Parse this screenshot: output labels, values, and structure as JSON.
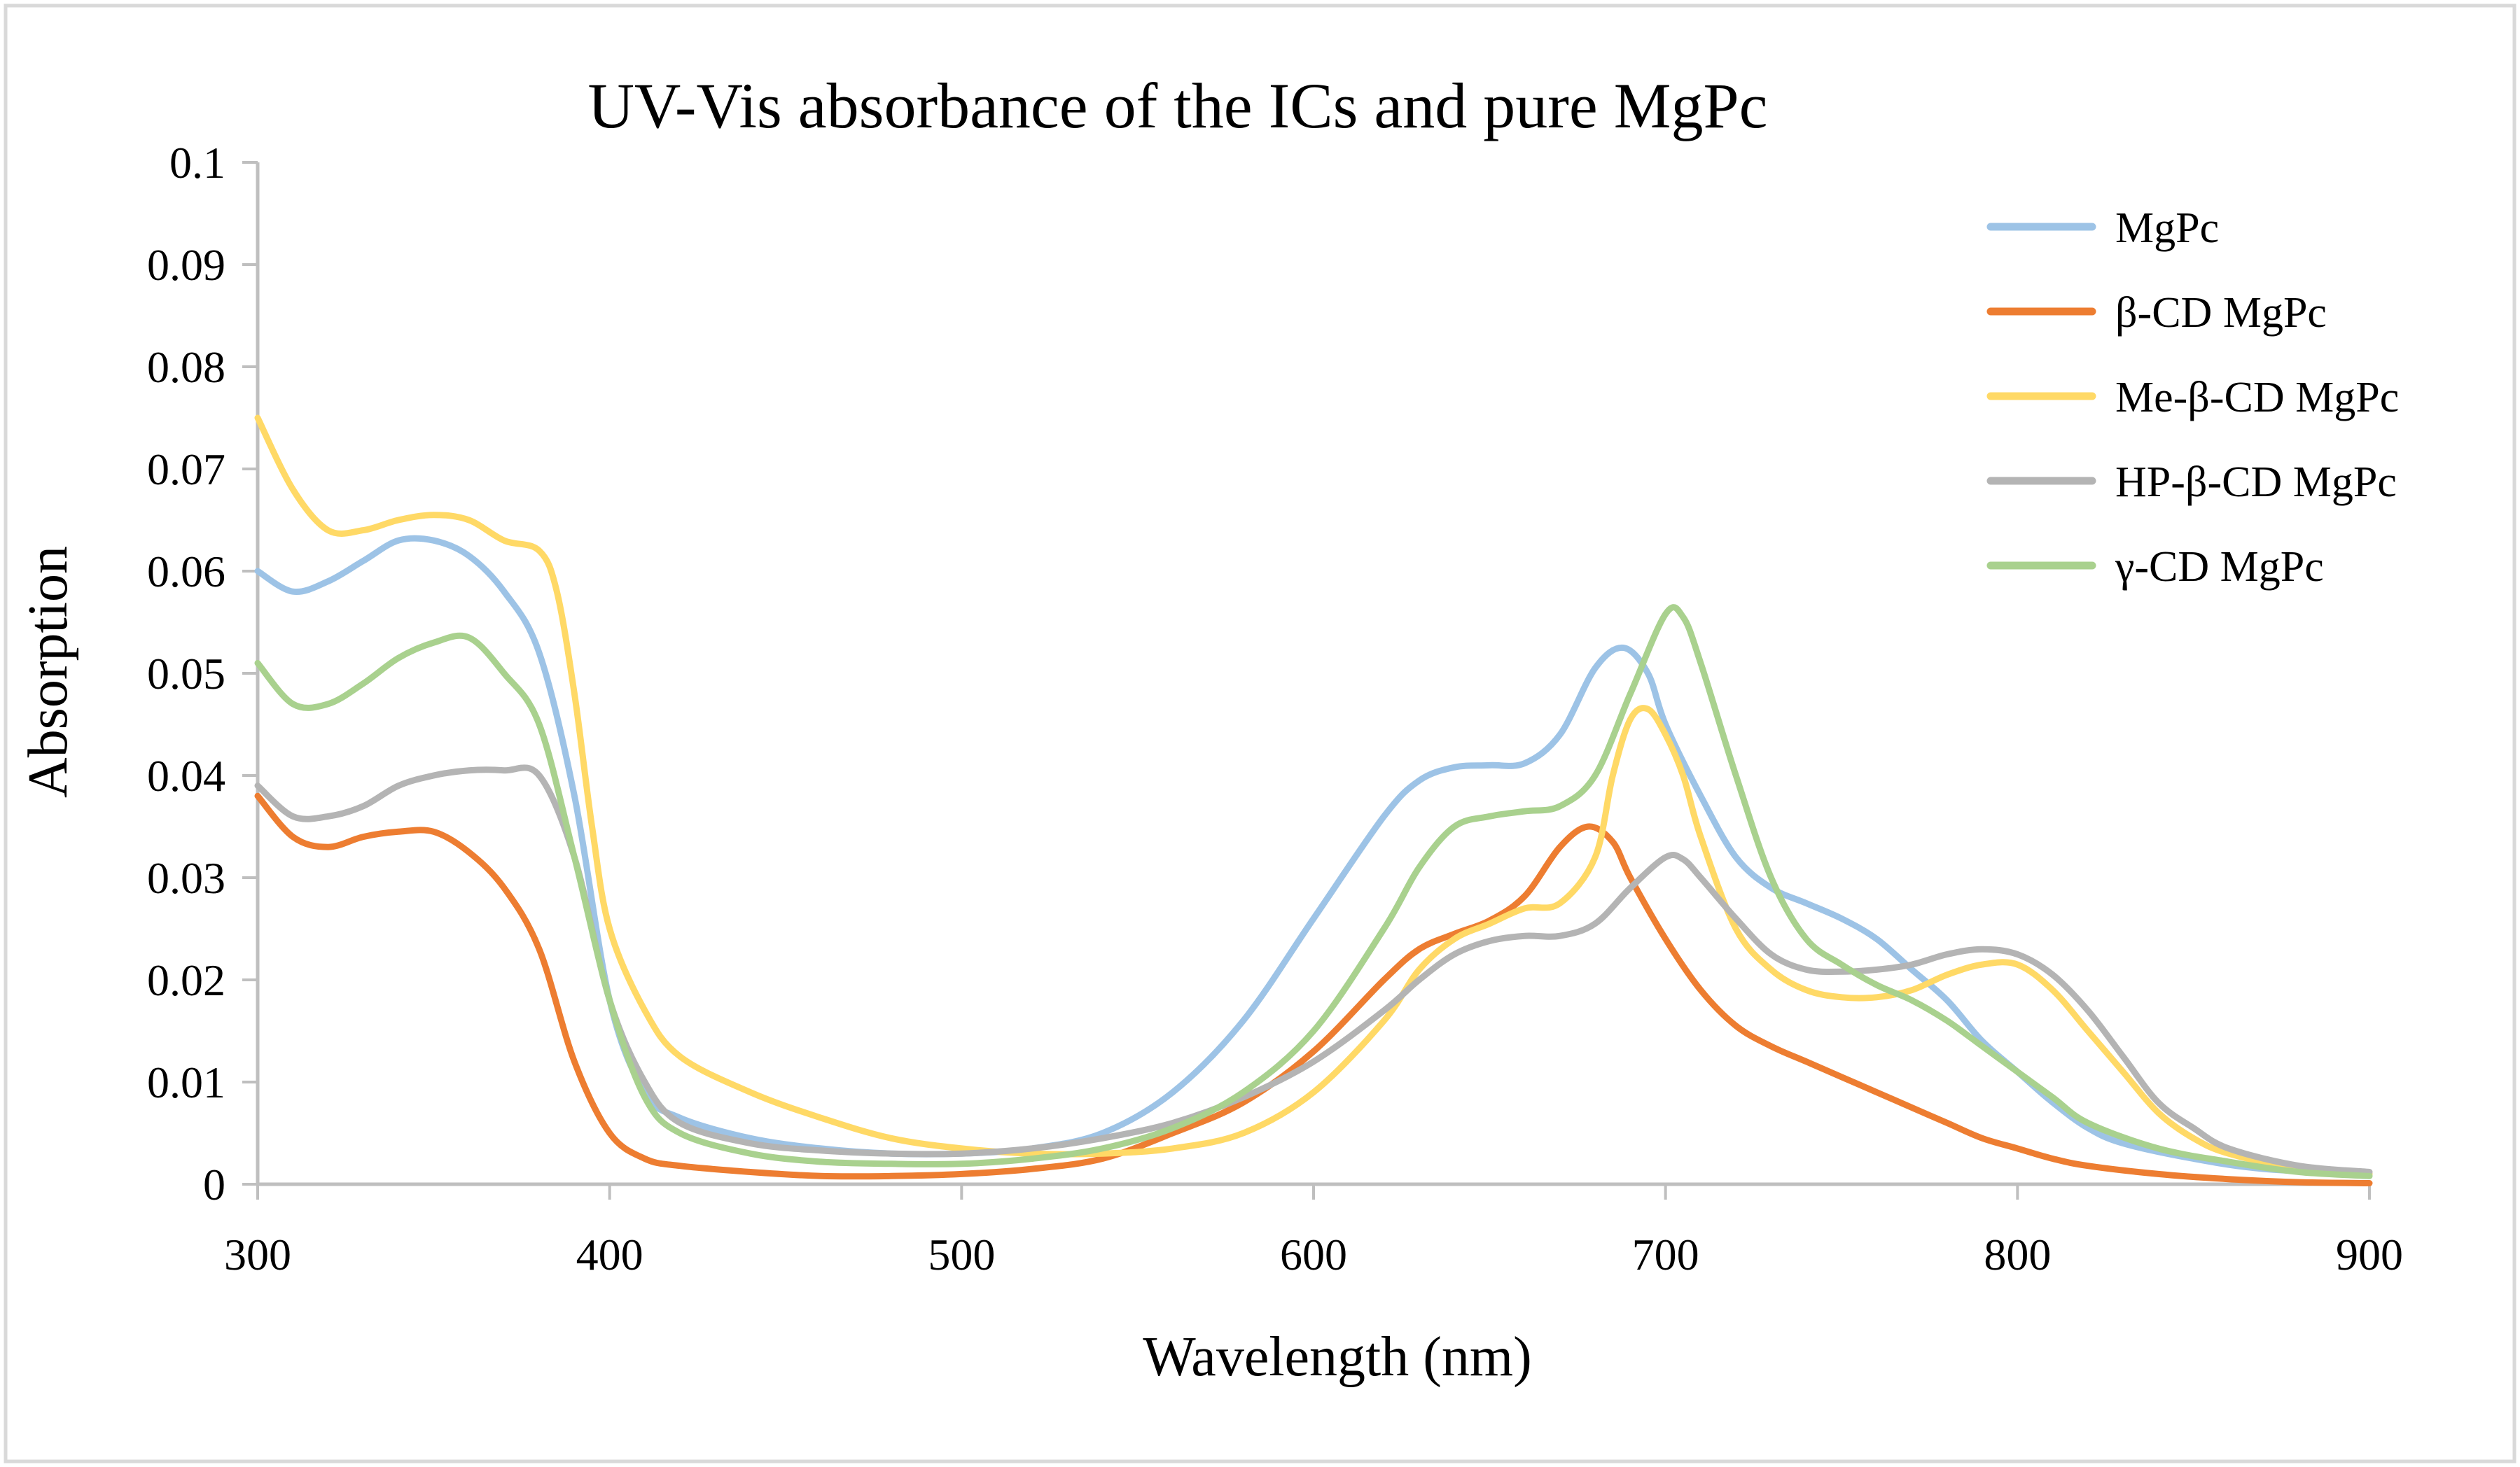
{
  "chart_data": {
    "type": "line",
    "title": "UV-Vis absorbance of the ICs and pure MgPc",
    "xlabel": "Wavelength (nm)",
    "ylabel": "Absorption",
    "xlim": [
      300,
      900
    ],
    "ylim": [
      0,
      0.1
    ],
    "x_ticks": [
      300,
      400,
      500,
      600,
      700,
      800,
      900
    ],
    "x_tick_labels": [
      "300",
      "400",
      "500",
      "600",
      "700",
      "800",
      "900"
    ],
    "y_ticks": [
      0,
      0.01,
      0.02,
      0.03,
      0.04,
      0.05,
      0.06,
      0.07,
      0.08,
      0.09,
      0.1
    ],
    "y_tick_labels": [
      "0",
      "0.01",
      "0.02",
      "0.03",
      "0.04",
      "0.05",
      "0.06",
      "0.07",
      "0.08",
      "0.09",
      "0.1"
    ],
    "grid": false,
    "legend_position": "top-right",
    "series": [
      {
        "name": "MgPc",
        "color": "#9dc3e6",
        "points": [
          [
            300,
            0.06
          ],
          [
            310,
            0.058
          ],
          [
            320,
            0.059
          ],
          [
            330,
            0.061
          ],
          [
            340,
            0.063
          ],
          [
            350,
            0.063
          ],
          [
            360,
            0.0615
          ],
          [
            370,
            0.058
          ],
          [
            380,
            0.052
          ],
          [
            390,
            0.038
          ],
          [
            400,
            0.018
          ],
          [
            410,
            0.009
          ],
          [
            420,
            0.0065
          ],
          [
            440,
            0.0045
          ],
          [
            460,
            0.0035
          ],
          [
            480,
            0.003
          ],
          [
            500,
            0.003
          ],
          [
            520,
            0.0035
          ],
          [
            540,
            0.005
          ],
          [
            560,
            0.009
          ],
          [
            580,
            0.016
          ],
          [
            600,
            0.026
          ],
          [
            620,
            0.036
          ],
          [
            630,
            0.0395
          ],
          [
            640,
            0.0408
          ],
          [
            650,
            0.041
          ],
          [
            660,
            0.0412
          ],
          [
            670,
            0.044
          ],
          [
            680,
            0.0505
          ],
          [
            688,
            0.0525
          ],
          [
            695,
            0.05
          ],
          [
            700,
            0.045
          ],
          [
            710,
            0.038
          ],
          [
            720,
            0.032
          ],
          [
            730,
            0.029
          ],
          [
            740,
            0.0275
          ],
          [
            750,
            0.026
          ],
          [
            760,
            0.024
          ],
          [
            770,
            0.021
          ],
          [
            780,
            0.018
          ],
          [
            790,
            0.014
          ],
          [
            800,
            0.011
          ],
          [
            810,
            0.008
          ],
          [
            820,
            0.0055
          ],
          [
            830,
            0.004
          ],
          [
            850,
            0.0025
          ],
          [
            870,
            0.0015
          ],
          [
            900,
            0.001
          ]
        ]
      },
      {
        "name": "β-CD MgPc",
        "color": "#ed7d31",
        "points": [
          [
            300,
            0.038
          ],
          [
            310,
            0.034
          ],
          [
            320,
            0.033
          ],
          [
            330,
            0.034
          ],
          [
            340,
            0.0345
          ],
          [
            350,
            0.0345
          ],
          [
            360,
            0.0325
          ],
          [
            370,
            0.029
          ],
          [
            380,
            0.023
          ],
          [
            390,
            0.012
          ],
          [
            400,
            0.005
          ],
          [
            410,
            0.0025
          ],
          [
            420,
            0.0018
          ],
          [
            440,
            0.0012
          ],
          [
            460,
            0.0008
          ],
          [
            480,
            0.0008
          ],
          [
            500,
            0.001
          ],
          [
            520,
            0.0015
          ],
          [
            540,
            0.0025
          ],
          [
            560,
            0.005
          ],
          [
            580,
            0.008
          ],
          [
            600,
            0.013
          ],
          [
            620,
            0.02
          ],
          [
            630,
            0.023
          ],
          [
            640,
            0.0245
          ],
          [
            650,
            0.0258
          ],
          [
            660,
            0.0282
          ],
          [
            670,
            0.033
          ],
          [
            678,
            0.035
          ],
          [
            685,
            0.0335
          ],
          [
            690,
            0.03
          ],
          [
            700,
            0.024
          ],
          [
            710,
            0.019
          ],
          [
            720,
            0.0155
          ],
          [
            730,
            0.0135
          ],
          [
            740,
            0.012
          ],
          [
            750,
            0.0105
          ],
          [
            760,
            0.009
          ],
          [
            770,
            0.0075
          ],
          [
            780,
            0.006
          ],
          [
            790,
            0.0045
          ],
          [
            800,
            0.0035
          ],
          [
            810,
            0.0025
          ],
          [
            820,
            0.0018
          ],
          [
            840,
            0.001
          ],
          [
            860,
            0.0005
          ],
          [
            880,
            0.0002
          ],
          [
            900,
            0.0001
          ]
        ]
      },
      {
        "name": "Me-β-CD MgPc",
        "color": "#ffd966",
        "points": [
          [
            300,
            0.075
          ],
          [
            310,
            0.068
          ],
          [
            320,
            0.064
          ],
          [
            330,
            0.064
          ],
          [
            340,
            0.065
          ],
          [
            350,
            0.0655
          ],
          [
            360,
            0.065
          ],
          [
            370,
            0.063
          ],
          [
            380,
            0.062
          ],
          [
            385,
            0.058
          ],
          [
            390,
            0.048
          ],
          [
            395,
            0.035
          ],
          [
            400,
            0.025
          ],
          [
            410,
            0.017
          ],
          [
            420,
            0.0125
          ],
          [
            440,
            0.009
          ],
          [
            460,
            0.0065
          ],
          [
            480,
            0.0045
          ],
          [
            500,
            0.0035
          ],
          [
            520,
            0.003
          ],
          [
            540,
            0.003
          ],
          [
            560,
            0.0035
          ],
          [
            580,
            0.005
          ],
          [
            600,
            0.009
          ],
          [
            620,
            0.016
          ],
          [
            630,
            0.021
          ],
          [
            640,
            0.024
          ],
          [
            650,
            0.0255
          ],
          [
            660,
            0.027
          ],
          [
            670,
            0.0275
          ],
          [
            680,
            0.032
          ],
          [
            685,
            0.04
          ],
          [
            690,
            0.0455
          ],
          [
            695,
            0.0465
          ],
          [
            700,
            0.044
          ],
          [
            705,
            0.04
          ],
          [
            710,
            0.034
          ],
          [
            720,
            0.025
          ],
          [
            730,
            0.021
          ],
          [
            740,
            0.019
          ],
          [
            750,
            0.0183
          ],
          [
            760,
            0.0183
          ],
          [
            770,
            0.019
          ],
          [
            780,
            0.0205
          ],
          [
            790,
            0.0215
          ],
          [
            800,
            0.0215
          ],
          [
            810,
            0.019
          ],
          [
            820,
            0.015
          ],
          [
            830,
            0.011
          ],
          [
            840,
            0.007
          ],
          [
            850,
            0.0045
          ],
          [
            860,
            0.003
          ],
          [
            880,
            0.0015
          ],
          [
            900,
            0.001
          ]
        ]
      },
      {
        "name": "HP-β-CD MgPc",
        "color": "#b4b4b4",
        "points": [
          [
            300,
            0.039
          ],
          [
            310,
            0.036
          ],
          [
            320,
            0.036
          ],
          [
            330,
            0.037
          ],
          [
            340,
            0.039
          ],
          [
            350,
            0.04
          ],
          [
            360,
            0.0405
          ],
          [
            370,
            0.0405
          ],
          [
            380,
            0.04
          ],
          [
            390,
            0.032
          ],
          [
            400,
            0.018
          ],
          [
            410,
            0.01
          ],
          [
            420,
            0.006
          ],
          [
            440,
            0.004
          ],
          [
            460,
            0.0033
          ],
          [
            480,
            0.003
          ],
          [
            500,
            0.003
          ],
          [
            520,
            0.0035
          ],
          [
            540,
            0.0045
          ],
          [
            560,
            0.006
          ],
          [
            580,
            0.0085
          ],
          [
            600,
            0.012
          ],
          [
            620,
            0.017
          ],
          [
            630,
            0.02
          ],
          [
            640,
            0.0225
          ],
          [
            650,
            0.0238
          ],
          [
            660,
            0.0243
          ],
          [
            670,
            0.0243
          ],
          [
            680,
            0.0255
          ],
          [
            690,
            0.029
          ],
          [
            700,
            0.032
          ],
          [
            705,
            0.0318
          ],
          [
            710,
            0.03
          ],
          [
            720,
            0.026
          ],
          [
            730,
            0.0225
          ],
          [
            740,
            0.021
          ],
          [
            750,
            0.0208
          ],
          [
            760,
            0.021
          ],
          [
            770,
            0.0215
          ],
          [
            780,
            0.0225
          ],
          [
            790,
            0.023
          ],
          [
            800,
            0.0225
          ],
          [
            810,
            0.0205
          ],
          [
            820,
            0.017
          ],
          [
            830,
            0.0125
          ],
          [
            840,
            0.008
          ],
          [
            850,
            0.0055
          ],
          [
            860,
            0.0035
          ],
          [
            880,
            0.0018
          ],
          [
            900,
            0.0012
          ]
        ]
      },
      {
        "name": "γ-CD MgPc",
        "color": "#a9d18e",
        "points": [
          [
            300,
            0.051
          ],
          [
            310,
            0.047
          ],
          [
            320,
            0.047
          ],
          [
            330,
            0.049
          ],
          [
            340,
            0.0515
          ],
          [
            350,
            0.053
          ],
          [
            360,
            0.0535
          ],
          [
            370,
            0.05
          ],
          [
            380,
            0.045
          ],
          [
            390,
            0.032
          ],
          [
            400,
            0.018
          ],
          [
            410,
            0.0085
          ],
          [
            420,
            0.005
          ],
          [
            440,
            0.003
          ],
          [
            460,
            0.0022
          ],
          [
            480,
            0.002
          ],
          [
            500,
            0.002
          ],
          [
            520,
            0.0025
          ],
          [
            540,
            0.0035
          ],
          [
            560,
            0.0055
          ],
          [
            580,
            0.009
          ],
          [
            600,
            0.015
          ],
          [
            620,
            0.025
          ],
          [
            630,
            0.031
          ],
          [
            640,
            0.035
          ],
          [
            650,
            0.036
          ],
          [
            660,
            0.0365
          ],
          [
            670,
            0.037
          ],
          [
            680,
            0.04
          ],
          [
            690,
            0.048
          ],
          [
            700,
            0.0558
          ],
          [
            705,
            0.0555
          ],
          [
            710,
            0.051
          ],
          [
            720,
            0.04
          ],
          [
            730,
            0.03
          ],
          [
            740,
            0.024
          ],
          [
            750,
            0.0215
          ],
          [
            760,
            0.0195
          ],
          [
            770,
            0.018
          ],
          [
            780,
            0.016
          ],
          [
            790,
            0.0135
          ],
          [
            800,
            0.011
          ],
          [
            810,
            0.0085
          ],
          [
            820,
            0.006
          ],
          [
            840,
            0.0035
          ],
          [
            860,
            0.0022
          ],
          [
            880,
            0.0012
          ],
          [
            900,
            0.0008
          ]
        ]
      }
    ]
  }
}
